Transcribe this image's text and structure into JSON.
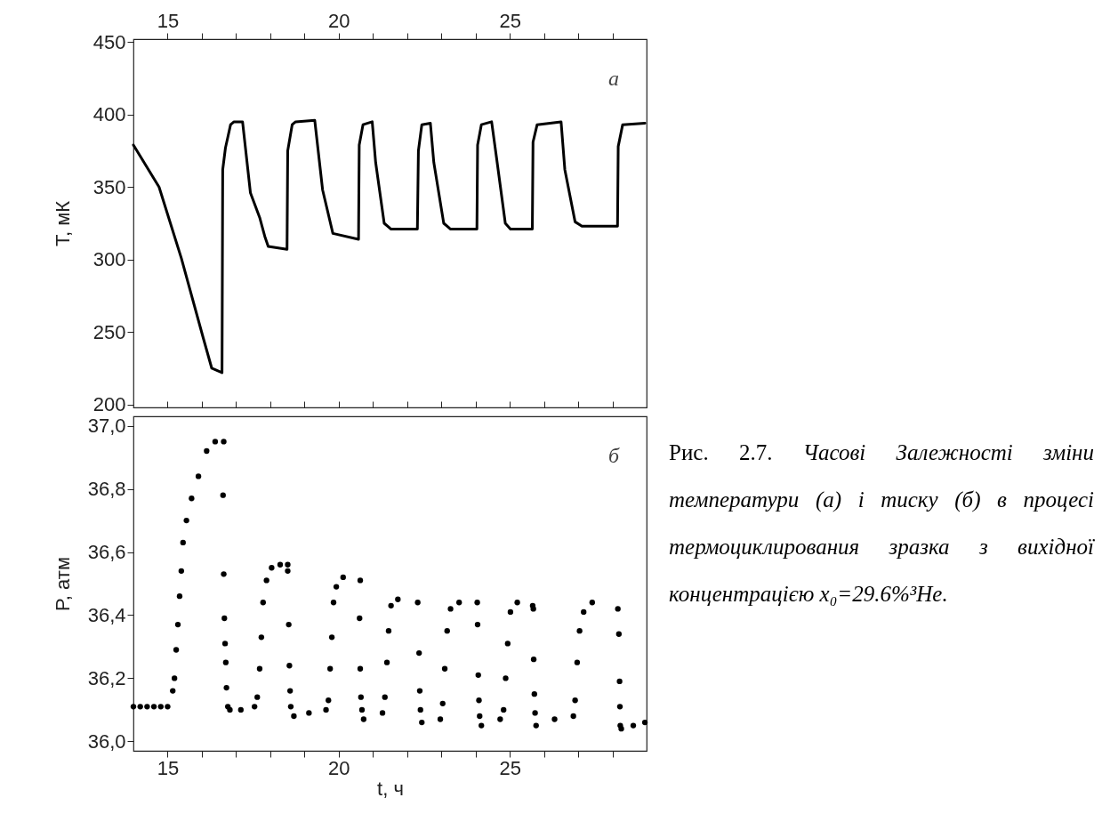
{
  "chart_data": [
    {
      "type": "line",
      "ylabel": "T, мК",
      "annotations": [
        "а"
      ],
      "grid": false,
      "tick_labels": "y",
      "xlim": [
        14,
        29
      ],
      "ylim": [
        198,
        452
      ],
      "xticks": [
        15,
        {
          "value": 16,
          "label": null
        },
        {
          "value": 17,
          "label": null
        },
        {
          "value": 18,
          "label": null
        },
        {
          "value": 19,
          "label": null
        },
        20,
        {
          "value": 21,
          "label": null
        },
        {
          "value": 22,
          "label": null
        },
        {
          "value": 23,
          "label": null
        },
        {
          "value": 24,
          "label": null
        },
        25,
        {
          "value": 26,
          "label": null
        },
        {
          "value": 27,
          "label": null
        },
        {
          "value": 28,
          "label": null
        }
      ],
      "x2lim": [
        14,
        29
      ],
      "x2ticks": [
        15,
        {
          "value": 16,
          "label": null
        },
        {
          "value": 17,
          "label": null
        },
        {
          "value": 18,
          "label": null
        },
        {
          "value": 19,
          "label": null
        },
        20,
        {
          "value": 21,
          "label": null
        },
        {
          "value": 22,
          "label": null
        },
        {
          "value": 23,
          "label": null
        },
        {
          "value": 24,
          "label": null
        },
        25,
        {
          "value": 26,
          "label": null
        },
        {
          "value": 27,
          "label": null
        },
        {
          "value": 28,
          "label": null
        }
      ],
      "yticks": [
        200,
        250,
        300,
        350,
        400,
        450
      ],
      "series": [
        {
          "color": "#000000",
          "x": [
            14.0,
            14.75,
            15.4,
            16.04,
            16.29,
            16.59,
            16.61,
            16.69,
            16.84,
            16.94,
            17.19,
            17.42,
            17.69,
            17.84,
            17.94,
            18.49,
            18.51,
            18.64,
            18.74,
            19.3,
            19.53,
            19.83,
            20.58,
            20.6,
            20.71,
            20.98,
            21.08,
            21.33,
            21.53,
            22.3,
            22.33,
            22.43,
            22.68,
            22.78,
            23.07,
            23.27,
            24.04,
            24.06,
            24.17,
            24.47,
            24.62,
            24.87,
            25.02,
            25.66,
            25.68,
            25.8,
            26.5,
            26.61,
            26.91,
            27.11,
            28.15,
            28.17,
            28.3,
            28.95
          ],
          "values": [
            379,
            350,
            301,
            246,
            225,
            222,
            362,
            377,
            393,
            395,
            395,
            346,
            329,
            316,
            309,
            307,
            375,
            393,
            395,
            396,
            348,
            318,
            314,
            379,
            393,
            395,
            367,
            325,
            321,
            321,
            375,
            393,
            394,
            367,
            325,
            321,
            321,
            379,
            393,
            395,
            369,
            325,
            321,
            321,
            381,
            393,
            395,
            362,
            326,
            323,
            323,
            378,
            393,
            394
          ]
        }
      ]
    },
    {
      "type": "scatter",
      "xlabel": "t, ч",
      "ylabel": "P, атм",
      "annotations": [
        "б"
      ],
      "grid": false,
      "marker": "circle",
      "xlim": [
        14,
        29
      ],
      "ylim": [
        35.97,
        37.03
      ],
      "xticks": [
        15,
        {
          "value": 16,
          "label": null
        },
        {
          "value": 17,
          "label": null
        },
        {
          "value": 18,
          "label": null
        },
        {
          "value": 19,
          "label": null
        },
        20,
        {
          "value": 21,
          "label": null
        },
        {
          "value": 22,
          "label": null
        },
        {
          "value": 23,
          "label": null
        },
        {
          "value": 24,
          "label": null
        },
        25,
        {
          "value": 26,
          "label": null
        },
        {
          "value": 27,
          "label": null
        },
        {
          "value": 28,
          "label": null
        }
      ],
      "yticks": [
        {
          "value": 36.0,
          "label": "36,0"
        },
        {
          "value": 36.2,
          "label": "36,2"
        },
        {
          "value": 36.4,
          "label": "36,4"
        },
        {
          "value": 36.6,
          "label": "36,6"
        },
        {
          "value": 36.8,
          "label": "36,8"
        },
        {
          "value": 37.0,
          "label": "37,0"
        }
      ],
      "series": [
        {
          "color": "#000000",
          "x": [
            14.0,
            14.2,
            14.4,
            14.6,
            14.8,
            15.0,
            15.15,
            15.2,
            15.25,
            15.3,
            15.35,
            15.4,
            15.45,
            15.55,
            15.7,
            15.9,
            16.14,
            16.39,
            16.64,
            16.62,
            16.64,
            16.66,
            16.68,
            16.7,
            16.72,
            16.76,
            16.82,
            17.14,
            17.54,
            17.62,
            17.69,
            17.74,
            17.79,
            17.89,
            18.04,
            18.29,
            18.51,
            18.51,
            18.54,
            18.56,
            18.58,
            18.6,
            18.69,
            19.13,
            19.63,
            19.7,
            19.75,
            19.8,
            19.85,
            19.93,
            20.13,
            20.63,
            20.61,
            20.63,
            20.65,
            20.68,
            20.73,
            21.28,
            21.35,
            21.41,
            21.46,
            21.53,
            21.73,
            22.31,
            22.35,
            22.37,
            22.39,
            22.43,
            22.97,
            23.04,
            23.1,
            23.17,
            23.27,
            23.52,
            24.05,
            24.06,
            24.08,
            24.1,
            24.12,
            24.17,
            24.72,
            24.82,
            24.88,
            24.94,
            25.02,
            25.22,
            25.67,
            25.69,
            25.7,
            25.72,
            25.74,
            25.77,
            26.31,
            26.86,
            26.91,
            26.97,
            27.04,
            27.16,
            27.41,
            28.16,
            28.19,
            28.21,
            28.22,
            28.23,
            28.26,
            28.61,
            28.95
          ],
          "values": [
            36.11,
            36.11,
            36.11,
            36.11,
            36.11,
            36.11,
            36.16,
            36.2,
            36.29,
            36.37,
            36.46,
            36.54,
            36.63,
            36.7,
            36.77,
            36.84,
            36.92,
            36.95,
            36.95,
            36.78,
            36.53,
            36.39,
            36.31,
            36.25,
            36.17,
            36.11,
            36.1,
            36.1,
            36.11,
            36.14,
            36.23,
            36.33,
            36.44,
            36.51,
            36.55,
            36.56,
            36.56,
            36.54,
            36.37,
            36.24,
            36.16,
            36.11,
            36.08,
            36.09,
            36.1,
            36.13,
            36.23,
            36.33,
            36.44,
            36.49,
            36.52,
            36.51,
            36.39,
            36.23,
            36.14,
            36.1,
            36.07,
            36.09,
            36.14,
            36.25,
            36.35,
            36.43,
            36.45,
            36.44,
            36.28,
            36.16,
            36.1,
            36.06,
            36.07,
            36.12,
            36.23,
            36.35,
            36.42,
            36.44,
            36.44,
            36.37,
            36.21,
            36.13,
            36.08,
            36.05,
            36.07,
            36.1,
            36.2,
            36.31,
            36.41,
            36.44,
            36.43,
            36.42,
            36.26,
            36.15,
            36.09,
            36.05,
            36.07,
            36.08,
            36.13,
            36.25,
            36.35,
            36.41,
            36.44,
            36.42,
            36.34,
            36.19,
            36.11,
            36.05,
            36.04,
            36.05,
            36.06
          ]
        }
      ]
    },
    {
      "type": "other",
      "annotations": [
        "Рис. 2.7.",
        "Часові Залежності зміни температури (а) і тиску (б) в процесі термоциклирования зразка з вихідної концентрацією x₀=29.6%³He."
      ]
    }
  ]
}
